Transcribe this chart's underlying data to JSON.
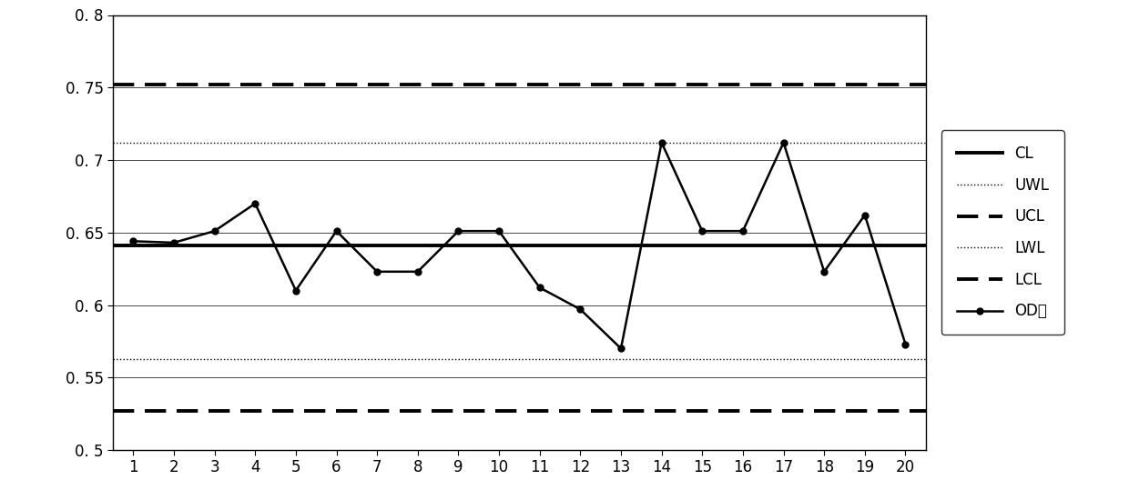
{
  "x": [
    1,
    2,
    3,
    4,
    5,
    6,
    7,
    8,
    9,
    10,
    11,
    12,
    13,
    14,
    15,
    16,
    17,
    18,
    19,
    20
  ],
  "od_values": [
    0.644,
    0.643,
    0.651,
    0.67,
    0.61,
    0.651,
    0.623,
    0.623,
    0.651,
    0.651,
    0.612,
    0.597,
    0.57,
    0.712,
    0.651,
    0.651,
    0.712,
    0.623,
    0.662,
    0.573
  ],
  "CL": 0.641,
  "UWL": 0.712,
  "UCL": 0.752,
  "LWL": 0.563,
  "LCL": 0.527,
  "ylim_min": 0.5,
  "ylim_max": 0.8,
  "yticks": [
    0.5,
    0.55,
    0.6,
    0.65,
    0.7,
    0.75,
    0.8
  ],
  "ytick_labels": [
    "0. 5",
    "0. 55",
    "0. 6",
    "0. 65",
    "0. 7",
    "0. 75",
    "0. 8"
  ],
  "xticks": [
    1,
    2,
    3,
    4,
    5,
    6,
    7,
    8,
    9,
    10,
    11,
    12,
    13,
    14,
    15,
    16,
    17,
    18,
    19,
    20
  ],
  "background_color": "#ffffff",
  "line_color": "#000000",
  "figsize": [
    12.4,
    5.5
  ],
  "dpi": 100
}
